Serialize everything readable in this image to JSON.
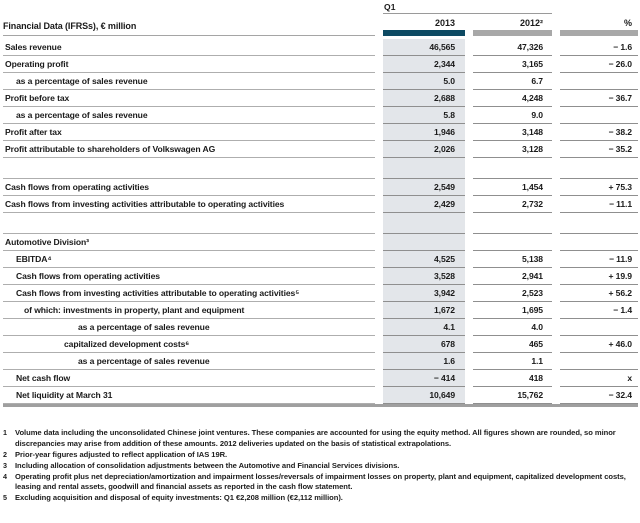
{
  "table": {
    "title": "Financial Data (IFRSs), € million",
    "period_label": "Q1",
    "col_headers": {
      "y2013": "2013",
      "y2012": "2012²",
      "pct": "%"
    },
    "colors": {
      "accent_bar": "#0d4a63",
      "gray_bar": "#a8a8a8",
      "column_shade": "#e3e6ea"
    },
    "rows": [
      {
        "type": "data",
        "indent": 0,
        "label": "Sales revenue",
        "v2013": "46,565",
        "v2012": "47,326",
        "pct": "− 1.6"
      },
      {
        "type": "data",
        "indent": 0,
        "label": "Operating profit",
        "v2013": "2,344",
        "v2012": "3,165",
        "pct": "− 26.0"
      },
      {
        "type": "data",
        "indent": 1,
        "label": "as a percentage of sales revenue",
        "v2013": "5.0",
        "v2012": "6.7",
        "pct": ""
      },
      {
        "type": "data",
        "indent": 0,
        "label": "Profit before tax",
        "v2013": "2,688",
        "v2012": "4,248",
        "pct": "− 36.7"
      },
      {
        "type": "data",
        "indent": 1,
        "label": "as a percentage of sales revenue",
        "v2013": "5.8",
        "v2012": "9.0",
        "pct": ""
      },
      {
        "type": "data",
        "indent": 0,
        "label": "Profit after tax",
        "v2013": "1,946",
        "v2012": "3,148",
        "pct": "− 38.2"
      },
      {
        "type": "data",
        "indent": 0,
        "label": "Profit attributable to shareholders of Volkswagen AG",
        "v2013": "2,026",
        "v2012": "3,128",
        "pct": "− 35.2"
      },
      {
        "type": "spacer"
      },
      {
        "type": "data",
        "indent": 0,
        "label": "Cash flows from operating activities",
        "v2013": "2,549",
        "v2012": "1,454",
        "pct": "+ 75.3"
      },
      {
        "type": "data",
        "indent": 0,
        "label": "Cash flows from investing activities attributable to operating activities",
        "v2013": "2,429",
        "v2012": "2,732",
        "pct": "− 11.1"
      },
      {
        "type": "spacer"
      },
      {
        "type": "section",
        "indent": 0,
        "label": "Automotive Division³",
        "v2013": "",
        "v2012": "",
        "pct": ""
      },
      {
        "type": "data",
        "indent": 1,
        "label": "EBITDA⁴",
        "v2013": "4,525",
        "v2012": "5,138",
        "pct": "− 11.9"
      },
      {
        "type": "data",
        "indent": 1,
        "label": "Cash flows from operating activities",
        "v2013": "3,528",
        "v2012": "2,941",
        "pct": "+ 19.9"
      },
      {
        "type": "data",
        "indent": 1,
        "label": "Cash flows from investing activities attributable to operating activities⁵",
        "v2013": "3,942",
        "v2012": "2,523",
        "pct": "+ 56.2"
      },
      {
        "type": "data",
        "indent": 2,
        "label": "of which: investments in property, plant and equipment",
        "v2013": "1,672",
        "v2012": "1,695",
        "pct": "− 1.4"
      },
      {
        "type": "data",
        "indent": 4,
        "label": "as a percentage of sales revenue",
        "v2013": "4.1",
        "v2012": "4.0",
        "pct": ""
      },
      {
        "type": "data",
        "indent": 3,
        "label": "capitalized development costs⁶",
        "v2013": "678",
        "v2012": "465",
        "pct": "+ 46.0"
      },
      {
        "type": "data",
        "indent": 4,
        "label": "as a percentage of sales revenue",
        "v2013": "1.6",
        "v2012": "1.1",
        "pct": ""
      },
      {
        "type": "data",
        "indent": 1,
        "label": "Net cash flow",
        "v2013": "− 414",
        "v2012": "418",
        "pct": "x"
      },
      {
        "type": "data",
        "indent": 1,
        "label": "Net liquidity at March 31",
        "v2013": "10,649",
        "v2012": "15,762",
        "pct": "− 32.4"
      }
    ]
  },
  "footnotes": [
    {
      "marker": "1",
      "text": "Volume data including the unconsolidated Chinese joint ventures. These companies are accounted for using the equity method. All figures shown are rounded, so minor discrepancies may arise from addition of these amounts. 2012 deliveries updated on the basis of statistical extrapolations."
    },
    {
      "marker": "2",
      "text": "Prior-year figures adjusted to reflect application of IAS 19R."
    },
    {
      "marker": "3",
      "text": "Including allocation of consolidation adjustments between the Automotive and Financial Services divisions."
    },
    {
      "marker": "4",
      "text": "Operating profit plus net depreciation/amortization and impairment losses/reversals of impairment losses on property, plant and equipment, capitalized development costs, leasing and rental assets, goodwill and financial assets as reported in the cash flow statement."
    },
    {
      "marker": "5",
      "text": "Excluding acquisition and disposal of equity investments: Q1 €2,208 million (€2,112 million)."
    }
  ]
}
